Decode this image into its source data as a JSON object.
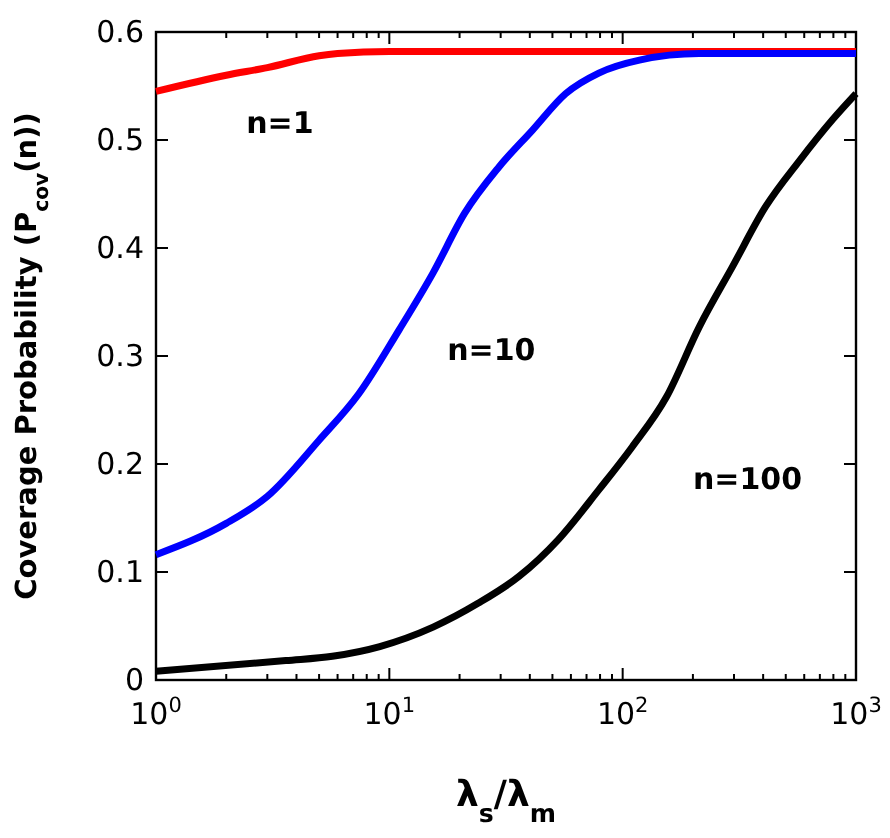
{
  "chart_data": {
    "type": "line",
    "xlabel": "λ$_{s}$/λ$_{m}$",
    "ylabel": "Coverage Probability (P$_{cov}$(n))",
    "log": "x",
    "xlim": [
      1,
      1000
    ],
    "ylim": [
      0,
      0.6
    ],
    "xticks": [
      {
        "value": 1,
        "label": "10$^{0}$"
      },
      {
        "value": 2,
        "label": null
      },
      {
        "value": 3,
        "label": null
      },
      {
        "value": 4,
        "label": null
      },
      {
        "value": 5,
        "label": null
      },
      {
        "value": 6,
        "label": null
      },
      {
        "value": 7,
        "label": null
      },
      {
        "value": 8,
        "label": null
      },
      {
        "value": 9,
        "label": null
      },
      {
        "value": 10,
        "label": "10$^{1}$"
      },
      {
        "value": 20,
        "label": null
      },
      {
        "value": 30,
        "label": null
      },
      {
        "value": 40,
        "label": null
      },
      {
        "value": 50,
        "label": null
      },
      {
        "value": 60,
        "label": null
      },
      {
        "value": 70,
        "label": null
      },
      {
        "value": 80,
        "label": null
      },
      {
        "value": 90,
        "label": null
      },
      {
        "value": 100,
        "label": "10$^{2}$"
      },
      {
        "value": 200,
        "label": null
      },
      {
        "value": 300,
        "label": null
      },
      {
        "value": 400,
        "label": null
      },
      {
        "value": 500,
        "label": null
      },
      {
        "value": 600,
        "label": null
      },
      {
        "value": 700,
        "label": null
      },
      {
        "value": 800,
        "label": null
      },
      {
        "value": 900,
        "label": null
      },
      {
        "value": 1000,
        "label": "10$^{3}$"
      }
    ],
    "yticks": [
      0,
      0.1,
      0.2,
      0.3,
      0.4,
      0.5,
      0.6
    ],
    "series": [
      {
        "color": "#ff0000",
        "x": [
          1,
          2,
          3,
          5,
          6,
          10,
          30,
          100,
          1000
        ],
        "values": [
          0.545,
          0.56,
          0.567,
          0.578,
          0.58,
          0.582,
          0.582,
          0.582,
          0.582
        ]
      },
      {
        "color": "#0000ff",
        "x": [
          1,
          2,
          3,
          5,
          7.4,
          11,
          15.4,
          21,
          29.5,
          41,
          57,
          79,
          118,
          213,
          1000
        ],
        "values": [
          0.116,
          0.145,
          0.17,
          0.222,
          0.265,
          0.324,
          0.377,
          0.432,
          0.475,
          0.509,
          0.543,
          0.562,
          0.574,
          0.58,
          0.58
        ]
      },
      {
        "color": "#000000",
        "x": [
          1,
          3.6,
          5.7,
          9.1,
          15.4,
          24,
          36,
          53,
          79,
          110,
          154,
          213,
          296,
          409,
          573,
          794,
          1000
        ],
        "values": [
          0.008,
          0.018,
          0.022,
          0.031,
          0.049,
          0.071,
          0.096,
          0.13,
          0.176,
          0.216,
          0.262,
          0.327,
          0.383,
          0.438,
          0.481,
          0.519,
          0.543
        ]
      }
    ],
    "annotations": [
      "n=1",
      "n=10",
      "n=100"
    ]
  }
}
